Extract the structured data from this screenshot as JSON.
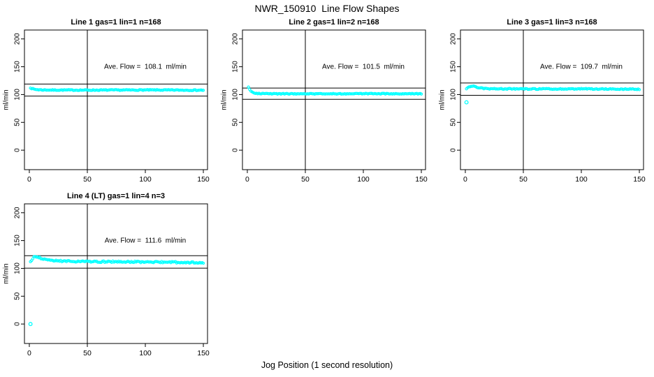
{
  "main_title": "NWR_150910  Line Flow Shapes",
  "footer_label": "Jog Position (1 second resolution)",
  "colors": {
    "points": "#00ffff",
    "axis": "#000000",
    "background": "#ffffff"
  },
  "chart_data": [
    {
      "type": "scatter",
      "title": "Line 1 gas=1 lin=1 n=168",
      "annotation": "Ave. Flow =  108.1  ml/min",
      "ave_flow_ml_min": 108.1,
      "n": 168,
      "ylabel": "ml/min",
      "xlim": [
        -4.2,
        153.6
      ],
      "ylim": [
        -35,
        216
      ],
      "xticks": [
        0,
        50,
        100,
        150
      ],
      "yticks": [
        0,
        50,
        100,
        150,
        200
      ],
      "vline_x": 50,
      "ref_lines": [
        118.9,
        97.3
      ],
      "annotation_pos": [
        100,
        150
      ],
      "grid_pos": [
        0,
        0
      ],
      "points_x_range": [
        1,
        150
      ],
      "noise": 0.8,
      "series_keypoints": [
        [
          1,
          112.5
        ],
        [
          2,
          111
        ],
        [
          3,
          110.2
        ],
        [
          4,
          109.6
        ],
        [
          6,
          109
        ],
        [
          10,
          108.4
        ],
        [
          20,
          108.1
        ],
        [
          60,
          108
        ],
        [
          100,
          108.2
        ],
        [
          150,
          107.9
        ]
      ],
      "outliers": []
    },
    {
      "type": "scatter",
      "title": "Line 2 gas=1 lin=2 n=168",
      "annotation": "Ave. Flow =  101.5  ml/min",
      "ave_flow_ml_min": 101.5,
      "n": 168,
      "ylabel": "ml/min",
      "xlim": [
        -4.2,
        153.6
      ],
      "ylim": [
        -35,
        216
      ],
      "xticks": [
        0,
        50,
        100,
        150
      ],
      "yticks": [
        0,
        50,
        100,
        150,
        200
      ],
      "vline_x": 50,
      "ref_lines": [
        111.7,
        91.4
      ],
      "annotation_pos": [
        100,
        150
      ],
      "grid_pos": [
        0,
        1
      ],
      "points_x_range": [
        1,
        150
      ],
      "noise": 0.7,
      "series_keypoints": [
        [
          1,
          113
        ],
        [
          2,
          109.5
        ],
        [
          3,
          106.8
        ],
        [
          4,
          105
        ],
        [
          6,
          103.2
        ],
        [
          8,
          102.3
        ],
        [
          12,
          101.7
        ],
        [
          20,
          101.4
        ],
        [
          60,
          101.4
        ],
        [
          100,
          101.5
        ],
        [
          150,
          101.4
        ]
      ],
      "outliers": []
    },
    {
      "type": "scatter",
      "title": "Line 3 gas=1 lin=3 n=168",
      "annotation": "Ave. Flow =  109.7  ml/min",
      "ave_flow_ml_min": 109.7,
      "n": 168,
      "ylabel": "ml/min",
      "xlim": [
        -4.2,
        153.6
      ],
      "ylim": [
        -35,
        216
      ],
      "xticks": [
        0,
        50,
        100,
        150
      ],
      "yticks": [
        0,
        50,
        100,
        150,
        200
      ],
      "vline_x": 50,
      "ref_lines": [
        120.7,
        98.7
      ],
      "annotation_pos": [
        100,
        150
      ],
      "grid_pos": [
        0,
        2
      ],
      "points_x_range": [
        1,
        150
      ],
      "noise": 0.8,
      "series_keypoints": [
        [
          1,
          111
        ],
        [
          2,
          112.5
        ],
        [
          3,
          114
        ],
        [
          5,
          115.2
        ],
        [
          7,
          114.8
        ],
        [
          9,
          113.5
        ],
        [
          12,
          112
        ],
        [
          16,
          111
        ],
        [
          25,
          110.3
        ],
        [
          60,
          110
        ],
        [
          100,
          110.2
        ],
        [
          150,
          109.6
        ]
      ],
      "outliers": [
        [
          1,
          86
        ]
      ]
    },
    {
      "type": "scatter",
      "title": "Line 4 (LT) gas=1 lin=4 n=3",
      "annotation": "Ave. Flow =  111.6  ml/min",
      "ave_flow_ml_min": 111.6,
      "n": 3,
      "ylabel": "ml/min",
      "xlim": [
        -4.2,
        153.6
      ],
      "ylim": [
        -35,
        216
      ],
      "xticks": [
        0,
        50,
        100,
        150
      ],
      "yticks": [
        0,
        50,
        100,
        150,
        200
      ],
      "vline_x": 50,
      "ref_lines": [
        122.8,
        100.4
      ],
      "annotation_pos": [
        100,
        150
      ],
      "grid_pos": [
        1,
        0
      ],
      "points_x_range": [
        1,
        150
      ],
      "noise": 1.3,
      "series_keypoints": [
        [
          1,
          112
        ],
        [
          2,
          115
        ],
        [
          3,
          118.5
        ],
        [
          5,
          121.5
        ],
        [
          7,
          121
        ],
        [
          10,
          118.5
        ],
        [
          14,
          116
        ],
        [
          20,
          114.3
        ],
        [
          30,
          113
        ],
        [
          50,
          112.3
        ],
        [
          80,
          111.8
        ],
        [
          110,
          111.4
        ],
        [
          150,
          110.4
        ]
      ],
      "outliers": [
        [
          1,
          0
        ]
      ]
    }
  ]
}
